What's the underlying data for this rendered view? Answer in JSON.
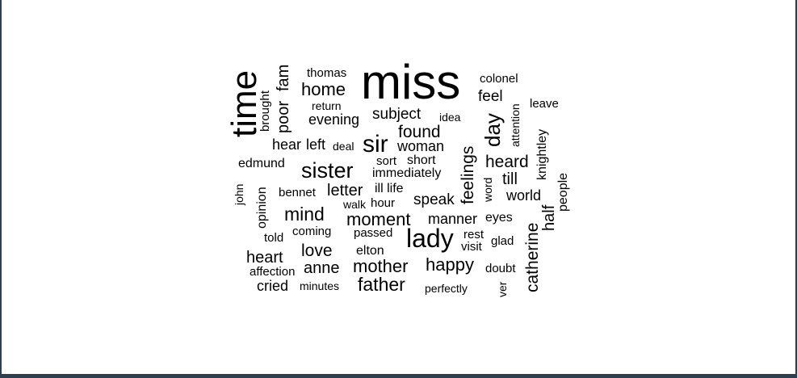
{
  "colors": {
    "border": "#2f3f4f",
    "background": "#ffffff",
    "text": "#000000"
  },
  "words": {
    "miss": "miss",
    "time": "time",
    "poor": "poor",
    "fam": "fam",
    "thomas": "thomas",
    "home": "home",
    "return": "return",
    "brought": "brought",
    "evening": "evening",
    "subject": "subject",
    "idea": "idea",
    "colonel": "colonel",
    "feel": "feel",
    "leave": "leave",
    "day": "day",
    "attention": "attention",
    "found": "found",
    "hear": "hear",
    "left": "left",
    "deal": "deal",
    "sir": "sir",
    "woman": "woman",
    "knightley": "knightley",
    "feelings": "feelings",
    "heard": "heard",
    "edmund": "edmund",
    "sister": "sister",
    "sort": "sort",
    "short": "short",
    "immediately": "immediately",
    "till": "till",
    "word": "word",
    "people": "people",
    "john": "john",
    "opinion": "opinion",
    "bennet": "bennet",
    "letter": "letter",
    "ill": "ill",
    "life": "life",
    "world": "world",
    "walk": "walk",
    "hour": "hour",
    "speak": "speak",
    "half": "half",
    "mind": "mind",
    "moment": "moment",
    "manner": "manner",
    "eyes": "eyes",
    "catherine": "catherine",
    "coming": "coming",
    "passed": "passed",
    "lady": "lady",
    "told": "told",
    "rest": "rest",
    "glad": "glad",
    "visit": "visit",
    "love": "love",
    "elton": "elton",
    "heart": "heart",
    "mother": "mother",
    "happy": "happy",
    "affection": "affection",
    "anne": "anne",
    "doubt": "doubt",
    "cried": "cried",
    "minutes": "minutes",
    "father": "father",
    "perfectly": "perfectly",
    "ver": "ver"
  }
}
